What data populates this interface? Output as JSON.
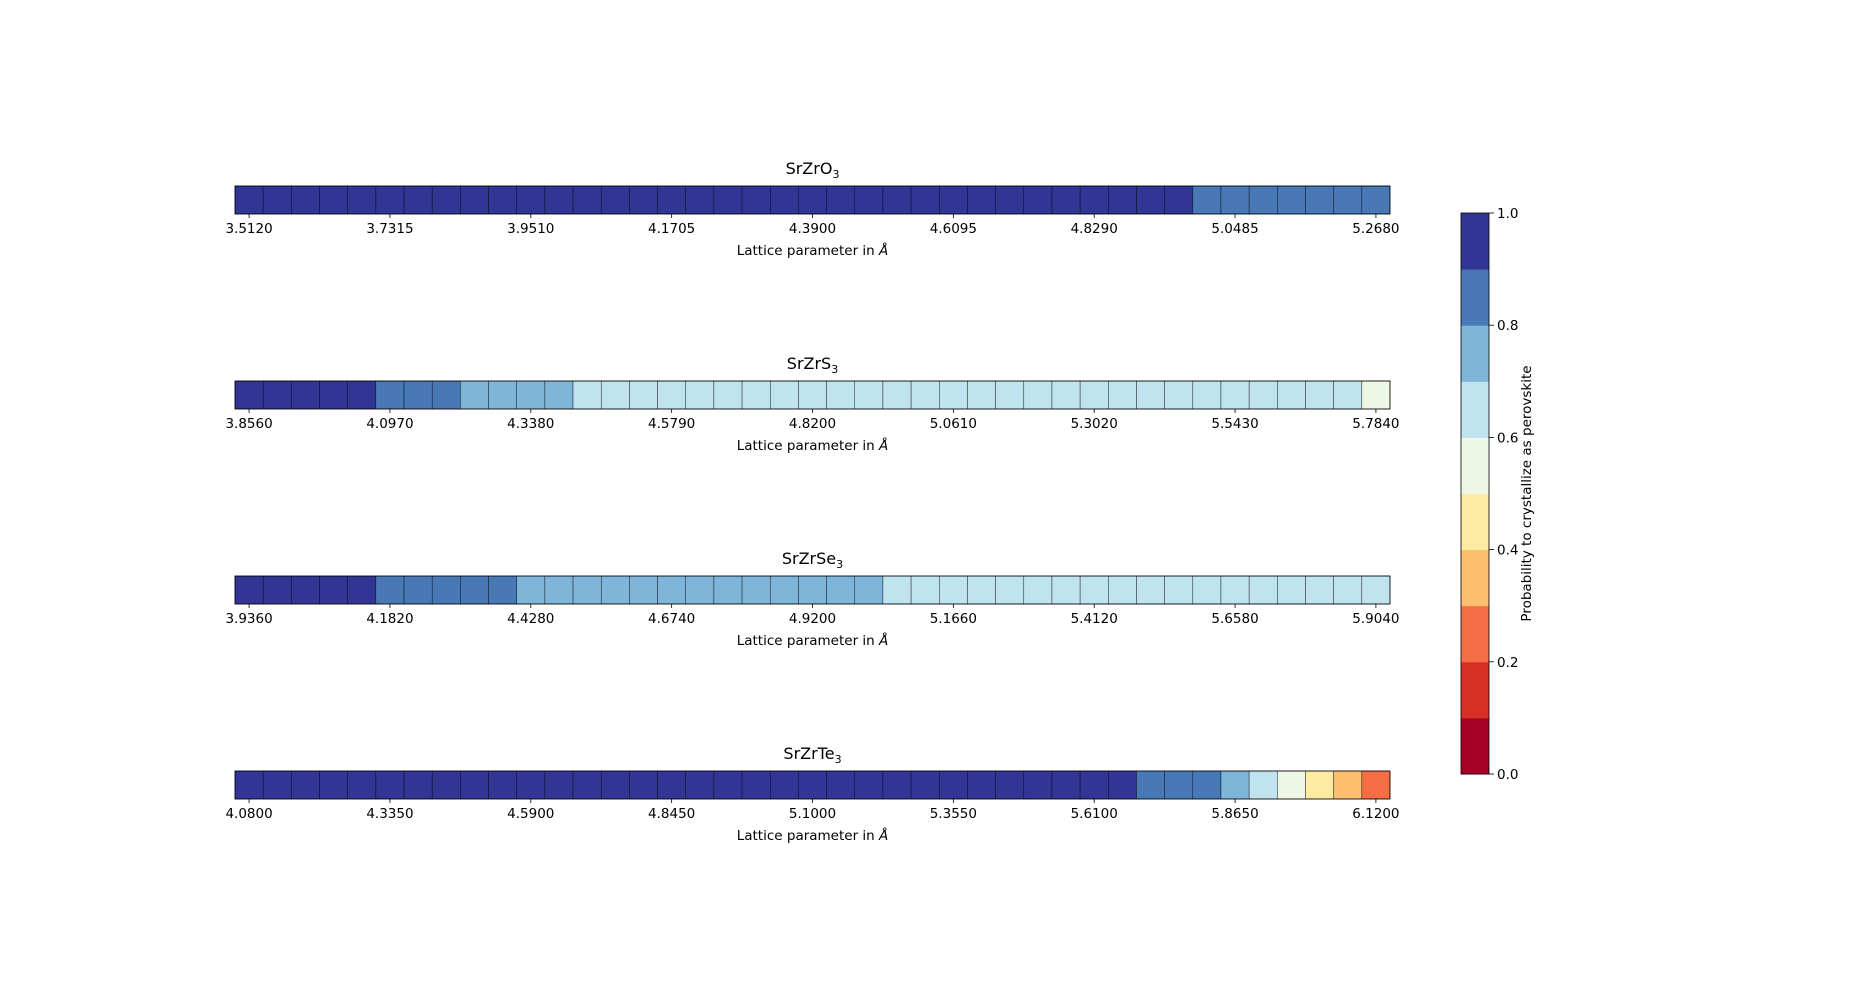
{
  "chart_data": [
    {
      "type": "heatmap",
      "title": "SrZrO3",
      "title_parts": [
        "SrZrO",
        "3"
      ],
      "xlabel": "Lattice parameter in Å",
      "xlabel_parts": [
        "Lattice parameter in ",
        "Å"
      ],
      "tick_labels": [
        "3.5120",
        "3.7315",
        "3.9510",
        "4.1705",
        "4.3900",
        "4.6095",
        "4.8290",
        "5.0485",
        "5.2680"
      ],
      "values": [
        1,
        1,
        1,
        1,
        1,
        1,
        1,
        1,
        1,
        1,
        1,
        1,
        1,
        1,
        1,
        1,
        1,
        1,
        1,
        1,
        1,
        1,
        1,
        1,
        1,
        1,
        1,
        1,
        1,
        1,
        1,
        1,
        1,
        1,
        0.85,
        0.85,
        0.85,
        0.85,
        0.85,
        0.85,
        0.85
      ]
    },
    {
      "type": "heatmap",
      "title": "SrZrS3",
      "title_parts": [
        "SrZrS",
        "3"
      ],
      "xlabel": "Lattice parameter in Å",
      "xlabel_parts": [
        "Lattice parameter in ",
        "Å"
      ],
      "tick_labels": [
        "3.8560",
        "4.0970",
        "4.3380",
        "4.5790",
        "4.8200",
        "5.0610",
        "5.3020",
        "5.5430",
        "5.7840"
      ],
      "values": [
        1,
        1,
        1,
        1,
        1,
        0.85,
        0.85,
        0.85,
        0.75,
        0.75,
        0.75,
        0.75,
        0.65,
        0.65,
        0.65,
        0.65,
        0.65,
        0.65,
        0.65,
        0.65,
        0.65,
        0.65,
        0.65,
        0.65,
        0.65,
        0.65,
        0.65,
        0.65,
        0.65,
        0.65,
        0.65,
        0.65,
        0.65,
        0.65,
        0.65,
        0.65,
        0.65,
        0.65,
        0.65,
        0.65,
        0.55
      ]
    },
    {
      "type": "heatmap",
      "title": "SrZrSe3",
      "title_parts": [
        "SrZrSe",
        "3"
      ],
      "xlabel": "Lattice parameter in Å",
      "xlabel_parts": [
        "Lattice parameter in ",
        "Å"
      ],
      "tick_labels": [
        "3.9360",
        "4.1820",
        "4.4280",
        "4.6740",
        "4.9200",
        "5.1660",
        "5.4120",
        "5.6580",
        "5.9040"
      ],
      "values": [
        1,
        1,
        1,
        1,
        1,
        0.85,
        0.85,
        0.85,
        0.85,
        0.895,
        0.75,
        0.75,
        0.75,
        0.75,
        0.75,
        0.75,
        0.75,
        0.75,
        0.75,
        0.75,
        0.75,
        0.75,
        0.75,
        0.65,
        0.65,
        0.65,
        0.65,
        0.65,
        0.65,
        0.65,
        0.65,
        0.65,
        0.65,
        0.65,
        0.65,
        0.65,
        0.65,
        0.65,
        0.65,
        0.65,
        0.65
      ]
    },
    {
      "type": "heatmap",
      "title": "SrZrTe3",
      "title_parts": [
        "SrZrTe",
        "3"
      ],
      "xlabel": "Lattice parameter in Å",
      "xlabel_parts": [
        "Lattice parameter in ",
        "Å"
      ],
      "tick_labels": [
        "4.0800",
        "4.3350",
        "4.5900",
        "4.8450",
        "5.1000",
        "5.3550",
        "5.6100",
        "5.8650",
        "6.1200"
      ],
      "values": [
        1,
        1,
        1,
        1,
        1,
        1,
        1,
        1,
        1,
        1,
        1,
        1,
        1,
        1,
        1,
        1,
        1,
        1,
        1,
        1,
        1,
        1,
        1,
        1,
        1,
        1,
        1,
        1,
        1,
        1,
        1,
        1,
        0.85,
        0.85,
        0.85,
        0.75,
        0.65,
        0.55,
        0.45,
        0.35,
        0.25
      ]
    }
  ],
  "colorbar": {
    "label": "Probability to crystallize as perovskite",
    "range": [
      0,
      1
    ],
    "tick_labels": [
      "0.0",
      "0.2",
      "0.4",
      "0.6",
      "0.8",
      "1.0"
    ],
    "colors": [
      "#a50026",
      "#d73027",
      "#f46d43",
      "#fdae61",
      "#fee090",
      "#e0f3f8",
      "#abd9e9",
      "#74add1",
      "#4575b4",
      "#313695"
    ],
    "bin_colors": [
      "#a50026",
      "#d73027",
      "#f46d43",
      "#fdbf6f",
      "#feeba2",
      "#eef7e3",
      "#bfe3ef",
      "#7fb5d8",
      "#4878b6",
      "#313695"
    ]
  }
}
